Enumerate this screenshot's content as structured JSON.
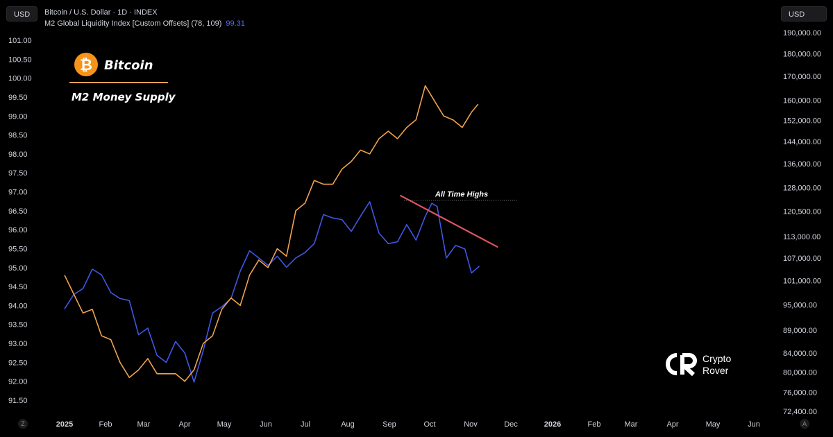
{
  "header": {
    "currency_left": "USD",
    "currency_right": "USD",
    "line1": "Bitcoin / U.S. Dollar · 1D · INDEX",
    "line2": "M2 Global Liquidity Index [Custom Offsets] (78, 109)",
    "line2_value": "99.31",
    "zoom_label": "Z",
    "auto_label": "A"
  },
  "legend": {
    "bitcoin_label": "Bitcoin",
    "m2_label": "M2 Money Supply"
  },
  "annotation": {
    "ath_label": "All Time Highs"
  },
  "watermark": {
    "line1": "Crypto",
    "line2": "Rover"
  },
  "colors": {
    "bitcoin": "#4057e3",
    "m2": "#f0a24e",
    "trendline": "#e5535d",
    "bitcoin_logo": "#f7931a",
    "ath_dotted": "#888888"
  },
  "chart_data": {
    "type": "line",
    "left_axis": {
      "ticks": [
        "101.00",
        "100.50",
        "100.00",
        "99.50",
        "99.00",
        "98.50",
        "98.00",
        "97.50",
        "97.00",
        "96.50",
        "96.00",
        "95.50",
        "95.00",
        "94.50",
        "94.00",
        "93.50",
        "93.00",
        "92.50",
        "92.00",
        "91.50"
      ],
      "range": [
        91.3,
        101.2
      ]
    },
    "right_axis": {
      "ticks": [
        "190,000.00",
        "180,000.00",
        "170,000.00",
        "160,000.00",
        "152,000.00",
        "144,000.00",
        "136,000.00",
        "128,000.00",
        "120,500.00",
        "113,000.00",
        "107,000.00",
        "101,000.00",
        "95,000.00",
        "89,000.00",
        "84,000.00",
        "80,000.00",
        "76,000.00",
        "72,400.00"
      ],
      "scale": "log",
      "range": [
        70000,
        196000
      ]
    },
    "x_axis": {
      "ticks": [
        "2025",
        "Feb",
        "Mar",
        "Apr",
        "May",
        "Jun",
        "Jul",
        "Aug",
        "Sep",
        "Oct",
        "Nov",
        "Dec",
        "2026",
        "Feb",
        "Mar",
        "Apr",
        "May",
        "Jun"
      ]
    },
    "series": [
      {
        "name": "Bitcoin",
        "axis": "right",
        "x": [
          "2025-01-01",
          "2025-01-08",
          "2025-01-15",
          "2025-01-22",
          "2025-01-29",
          "2025-02-05",
          "2025-02-12",
          "2025-02-19",
          "2025-02-26",
          "2025-03-05",
          "2025-03-12",
          "2025-03-19",
          "2025-03-26",
          "2025-04-02",
          "2025-04-09",
          "2025-04-16",
          "2025-04-23",
          "2025-04-30",
          "2025-05-07",
          "2025-05-14",
          "2025-05-21",
          "2025-05-28",
          "2025-06-04",
          "2025-06-11",
          "2025-06-18",
          "2025-06-25",
          "2025-07-02",
          "2025-07-09",
          "2025-07-16",
          "2025-07-23",
          "2025-07-30",
          "2025-08-06",
          "2025-08-13",
          "2025-08-20",
          "2025-08-27",
          "2025-09-03",
          "2025-09-10",
          "2025-09-17",
          "2025-09-24",
          "2025-10-01",
          "2025-10-06",
          "2025-10-10",
          "2025-10-17",
          "2025-10-24",
          "2025-10-31",
          "2025-11-05",
          "2025-11-11"
        ],
        "values": [
          94000,
          97500,
          99000,
          104000,
          102500,
          98000,
          96500,
          96000,
          88000,
          89500,
          83500,
          82000,
          86500,
          84000,
          78000,
          84500,
          93000,
          94500,
          96500,
          103500,
          109000,
          107000,
          105000,
          107500,
          104500,
          107000,
          108500,
          111000,
          119500,
          118500,
          118000,
          114500,
          119000,
          123500,
          114000,
          111000,
          111500,
          116500,
          112000,
          119000,
          123000,
          122000,
          107000,
          110500,
          109500,
          103000,
          104800
        ]
      },
      {
        "name": "M2 Money Supply",
        "axis": "left",
        "x": [
          "2025-01-01",
          "2025-01-08",
          "2025-01-15",
          "2025-01-22",
          "2025-01-29",
          "2025-02-05",
          "2025-02-12",
          "2025-02-19",
          "2025-02-26",
          "2025-03-05",
          "2025-03-12",
          "2025-03-19",
          "2025-03-26",
          "2025-04-02",
          "2025-04-09",
          "2025-04-16",
          "2025-04-23",
          "2025-04-30",
          "2025-05-07",
          "2025-05-14",
          "2025-05-21",
          "2025-05-28",
          "2025-06-04",
          "2025-06-11",
          "2025-06-18",
          "2025-06-25",
          "2025-07-02",
          "2025-07-09",
          "2025-07-16",
          "2025-07-23",
          "2025-07-30",
          "2025-08-06",
          "2025-08-13",
          "2025-08-20",
          "2025-08-27",
          "2025-09-03",
          "2025-09-10",
          "2025-09-17",
          "2025-09-24",
          "2025-10-01",
          "2025-10-08",
          "2025-10-15",
          "2025-10-22",
          "2025-10-29",
          "2025-11-05",
          "2025-11-10"
        ],
        "values": [
          94.8,
          94.3,
          93.8,
          93.9,
          93.2,
          93.1,
          92.5,
          92.1,
          92.3,
          92.6,
          92.2,
          92.2,
          92.2,
          92.0,
          92.3,
          93.0,
          93.2,
          93.9,
          94.2,
          94.0,
          94.8,
          95.2,
          95.0,
          95.5,
          95.3,
          96.5,
          96.7,
          97.3,
          97.2,
          97.2,
          97.6,
          97.8,
          98.1,
          98.0,
          98.4,
          98.6,
          98.4,
          98.7,
          98.9,
          99.8,
          99.4,
          99.0,
          98.9,
          98.7,
          99.1,
          99.31
        ]
      }
    ],
    "annotations": [
      {
        "text": "All Time Highs",
        "type": "dotted-horizontal",
        "value": 124000,
        "axis": "right"
      },
      {
        "type": "trendline",
        "from": [
          "2025-09-12",
          125500
        ],
        "to": [
          "2025-11-25",
          110000
        ],
        "axis": "right"
      }
    ],
    "grid": false,
    "legend_placement": "top-left"
  }
}
